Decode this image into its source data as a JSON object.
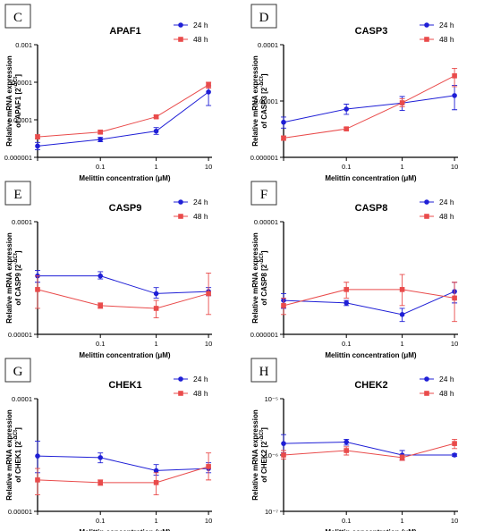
{
  "colors": {
    "series_24h": "#1f1fd6",
    "series_48h": "#e94b4b",
    "axis": "#000000"
  },
  "chart_data": [
    {
      "panel_label": "C",
      "type": "line",
      "title": "APAF1",
      "xlabel": "Melittin concentration (μM)",
      "ylabel_main": "Relative mRNA expression",
      "ylabel_sub": "of APAF1 [2",
      "ylabel_sup": "-ΔCt",
      "ylabel_end": "]",
      "yscale": "log",
      "ylim": [
        1e-06,
        0.001
      ],
      "yticks": [
        1e-06,
        1e-05,
        0.0001,
        0.001
      ],
      "ytick_labels": [
        "0.000001",
        "0.00001",
        "0.0001",
        "0.001"
      ],
      "x": [
        0.01,
        0.1,
        1,
        10
      ],
      "xtick_labels": [
        "",
        "0.1",
        "1",
        "10"
      ],
      "series": [
        {
          "name": "24 h",
          "values": [
            2e-06,
            3e-06,
            5e-06,
            5.5e-05
          ],
          "err_lo": [
            1.6e-06,
            2.6e-06,
            4.1e-06,
            2.4e-05
          ],
          "err_hi": [
            2.5e-06,
            3.4e-06,
            6.2e-06,
            8e-05
          ]
        },
        {
          "name": "48 h",
          "values": [
            3.5e-06,
            4.7e-06,
            1.2e-05,
            8.5e-05
          ],
          "err_lo": [
            3.1e-06,
            4.3e-06,
            1.1e-05,
            7e-05
          ],
          "err_hi": [
            4e-06,
            5.2e-06,
            1.3e-05,
            0.0001
          ]
        }
      ]
    },
    {
      "panel_label": "D",
      "type": "line",
      "title": "CASP3",
      "xlabel": "Melittin concentration (μM)",
      "ylabel_main": "Relative mRNA expression",
      "ylabel_sub": "of CASP3 [2",
      "ylabel_sup": "-ΔCt",
      "ylabel_end": "]",
      "yscale": "log",
      "ylim": [
        1e-06,
        0.0001
      ],
      "yticks": [
        1e-06,
        1e-05,
        0.0001
      ],
      "ytick_labels": [
        "0.000001",
        "0.00001",
        "0.0001"
      ],
      "x": [
        0.01,
        0.1,
        1,
        10
      ],
      "xtick_labels": [
        "",
        "0.1",
        "1",
        "10"
      ],
      "series": [
        {
          "name": "24 h",
          "values": [
            4.2e-06,
            7.2e-06,
            9.2e-06,
            1.25e-05
          ],
          "err_lo": [
            3.3e-06,
            5.8e-06,
            6.8e-06,
            7e-06
          ],
          "err_hi": [
            5.2e-06,
            8.8e-06,
            1.2e-05,
            1.9e-05
          ]
        },
        {
          "name": "48 h",
          "values": [
            2.2e-06,
            3.2e-06,
            9.3e-06,
            2.8e-05
          ],
          "err_lo": [
            2e-06,
            3e-06,
            7.9e-06,
            1.8e-05
          ],
          "err_hi": [
            2.4e-06,
            3.4e-06,
            1.1e-05,
            3.8e-05
          ]
        }
      ]
    },
    {
      "panel_label": "E",
      "type": "line",
      "title": "CASP9",
      "xlabel": "Melittin concentration (μM)",
      "ylabel_main": "Relative mRNA expression",
      "ylabel_sub": "of CASP9 [2",
      "ylabel_sup": "-ΔCt",
      "ylabel_end": "]",
      "yscale": "log",
      "ylim": [
        1e-05,
        0.0001
      ],
      "yticks": [
        1e-05,
        0.0001
      ],
      "ytick_labels": [
        "0.00001",
        "0.0001"
      ],
      "x": [
        0.01,
        0.1,
        1,
        10
      ],
      "xtick_labels": [
        "",
        "0.1",
        "1",
        "10"
      ],
      "series": [
        {
          "name": "24 h",
          "values": [
            3.3e-05,
            3.3e-05,
            2.3e-05,
            2.4e-05
          ],
          "err_lo": [
            2.9e-05,
            3.1e-05,
            2.1e-05,
            2.2e-05
          ],
          "err_hi": [
            3.7e-05,
            3.6e-05,
            2.6e-05,
            2.6e-05
          ]
        },
        {
          "name": "48 h",
          "values": [
            2.5e-05,
            1.8e-05,
            1.7e-05,
            2.3e-05
          ],
          "err_lo": [
            1.7e-05,
            1.7e-05,
            1.4e-05,
            1.5e-05
          ],
          "err_hi": [
            3.3e-05,
            1.9e-05,
            2e-05,
            3.5e-05
          ]
        }
      ]
    },
    {
      "panel_label": "F",
      "type": "line",
      "title": "CASP8",
      "xlabel": "Melittin concentration (μM)",
      "ylabel_main": "Relative mRNA expression",
      "ylabel_sub": "of CASP8 [2",
      "ylabel_sup": "-ΔCt",
      "ylabel_end": "]",
      "yscale": "log",
      "ylim": [
        1e-06,
        1e-05
      ],
      "yticks": [
        1e-06,
        1e-05
      ],
      "ytick_labels": [
        "0.000001",
        "0.00001"
      ],
      "x": [
        0.01,
        0.1,
        1,
        10
      ],
      "xtick_labels": [
        "",
        "0.1",
        "1",
        "10"
      ],
      "series": [
        {
          "name": "24 h",
          "values": [
            2e-06,
            1.9e-06,
            1.5e-06,
            2.4e-06
          ],
          "err_lo": [
            1.7e-06,
            1.8e-06,
            1.3e-06,
            1.9e-06
          ],
          "err_hi": [
            2.3e-06,
            2e-06,
            1.7e-06,
            2.9e-06
          ]
        },
        {
          "name": "48 h",
          "values": [
            1.8e-06,
            2.5e-06,
            2.5e-06,
            2.1e-06
          ],
          "err_lo": [
            1.5e-06,
            2.1e-06,
            1.8e-06,
            1.3e-06
          ],
          "err_hi": [
            2.1e-06,
            2.9e-06,
            3.4e-06,
            2.9e-06
          ]
        }
      ]
    },
    {
      "panel_label": "G",
      "type": "line",
      "title": "CHEK1",
      "xlabel": "Melittin concentration (μM)",
      "ylabel_main": "Relative mRNA expression",
      "ylabel_sub": "of CHEK1 [2",
      "ylabel_sup": "-ΔCt",
      "ylabel_end": "]",
      "yscale": "log",
      "ylim": [
        1e-05,
        0.0001
      ],
      "yticks": [
        1e-05,
        0.0001
      ],
      "ytick_labels": [
        "0.00001",
        "0.0001"
      ],
      "x": [
        0.01,
        0.1,
        1,
        10
      ],
      "xtick_labels": [
        "",
        "0.1",
        "1",
        "10"
      ],
      "series": [
        {
          "name": "24 h",
          "values": [
            3.1e-05,
            3e-05,
            2.3e-05,
            2.4e-05
          ],
          "err_lo": [
            2.2e-05,
            2.7e-05,
            2.1e-05,
            2.2e-05
          ],
          "err_hi": [
            4.2e-05,
            3.3e-05,
            2.6e-05,
            2.7e-05
          ]
        },
        {
          "name": "48 h",
          "values": [
            1.9e-05,
            1.8e-05,
            1.8e-05,
            2.5e-05
          ],
          "err_lo": [
            1.4e-05,
            1.7e-05,
            1.4e-05,
            1.9e-05
          ],
          "err_hi": [
            2.4e-05,
            1.9e-05,
            2.2e-05,
            3.3e-05
          ]
        }
      ]
    },
    {
      "panel_label": "H",
      "type": "line",
      "title": "CHEK2",
      "xlabel": "Melittin concentration (μM)",
      "ylabel_main": "Relative mRNA expression",
      "ylabel_sub": "of CHEK2 [2",
      "ylabel_sup": "-ΔCt",
      "ylabel_end": "]",
      "yscale": "log",
      "ylim": [
        1e-07,
        1e-05
      ],
      "yticks": [
        1e-07,
        1e-06,
        1e-05
      ],
      "ytick_labels": [
        "10⁻⁷",
        "10⁻⁶",
        "10⁻⁵"
      ],
      "x": [
        0.01,
        0.1,
        1,
        10
      ],
      "xtick_labels": [
        "",
        "0.1",
        "1",
        "10"
      ],
      "series": [
        {
          "name": "24 h",
          "values": [
            1.6e-06,
            1.7e-06,
            1e-06,
            1e-06
          ],
          "err_lo": [
            1.1e-06,
            1.5e-06,
            8e-07,
            9.5e-07
          ],
          "err_hi": [
            2.3e-06,
            1.9e-06,
            1.2e-06,
            1.05e-06
          ]
        },
        {
          "name": "48 h",
          "values": [
            1e-06,
            1.2e-06,
            9e-07,
            1.6e-06
          ],
          "err_lo": [
            8.5e-07,
            1e-06,
            8e-07,
            1.3e-06
          ],
          "err_hi": [
            1.2e-06,
            1.4e-06,
            1e-06,
            1.9e-06
          ]
        }
      ]
    }
  ]
}
